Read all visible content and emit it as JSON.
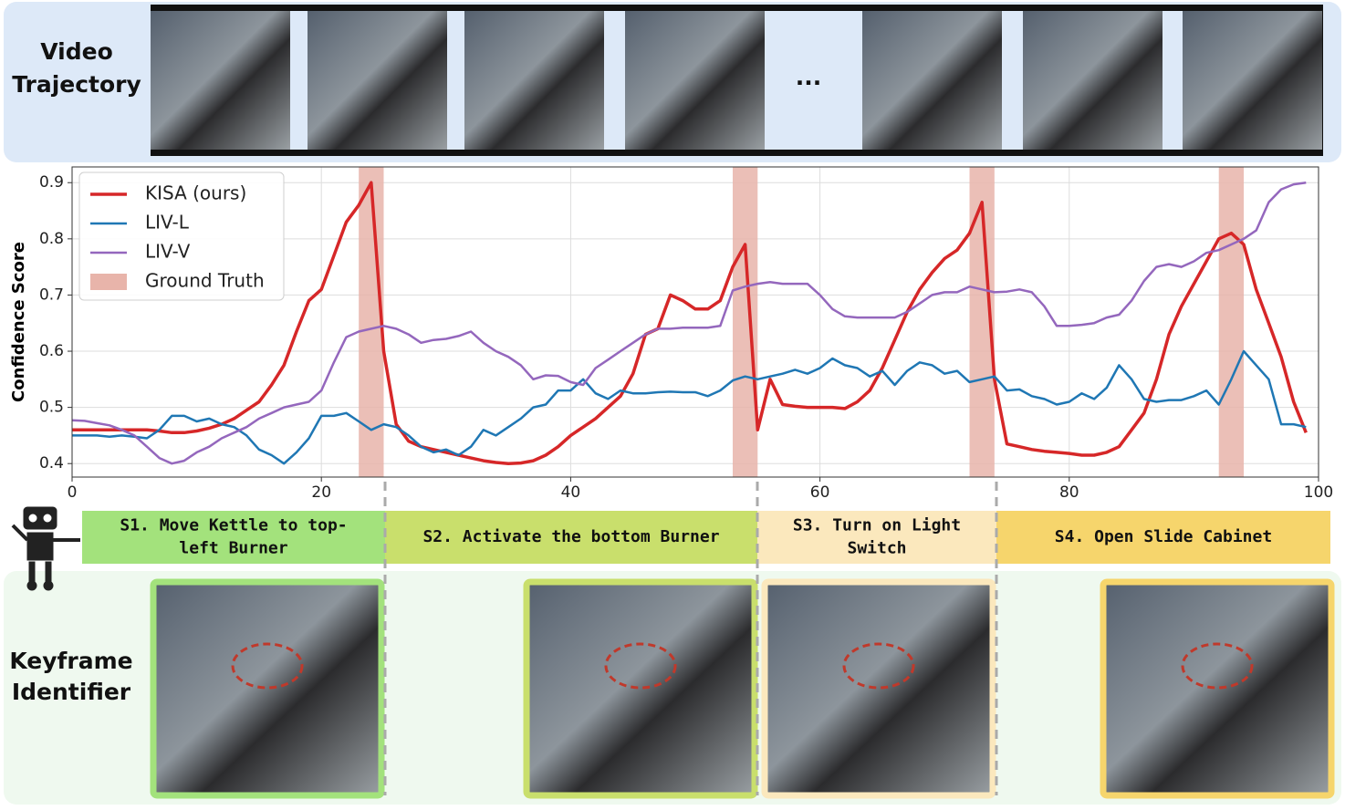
{
  "panels": {
    "video_label": [
      "Video",
      "Trajectory"
    ],
    "ellipsis": "...",
    "keyframe_label": [
      "Keyframe",
      "Identifier"
    ]
  },
  "stages": [
    {
      "lines": [
        "S1. Move Kettle to top-",
        "left Burner"
      ],
      "color": "#a3e27c"
    },
    {
      "lines": [
        "S2. Activate the bottom Burner"
      ],
      "color": "#c9df6c"
    },
    {
      "lines": [
        "S3. Turn on Light",
        "Switch"
      ],
      "color": "#fbe8bd"
    },
    {
      "lines": [
        "S4. Open Slide Cabinet"
      ],
      "color": "#f6d56c"
    }
  ],
  "chart_data": {
    "type": "line",
    "y_label": "Confidence Score",
    "xlim": [
      0,
      100
    ],
    "ylim": [
      0.376,
      0.928
    ],
    "xticks": [
      0,
      20,
      40,
      60,
      80,
      100
    ],
    "yticks": [
      0.4,
      0.5,
      0.6,
      0.7,
      0.8,
      0.9
    ],
    "grid": true,
    "legend": "upper left",
    "x": [
      0,
      1,
      2,
      3,
      4,
      5,
      6,
      7,
      8,
      9,
      10,
      11,
      12,
      13,
      14,
      15,
      16,
      17,
      18,
      19,
      20,
      21,
      22,
      23,
      24,
      25,
      26,
      27,
      28,
      29,
      30,
      31,
      32,
      33,
      34,
      35,
      36,
      37,
      38,
      39,
      40,
      41,
      42,
      43,
      44,
      45,
      46,
      47,
      48,
      49,
      50,
      51,
      52,
      53,
      54,
      55,
      56,
      57,
      58,
      59,
      60,
      61,
      62,
      63,
      64,
      65,
      66,
      67,
      68,
      69,
      70,
      71,
      72,
      73,
      74,
      75,
      76,
      77,
      78,
      79,
      80,
      81,
      82,
      83,
      84,
      85,
      86,
      87,
      88,
      89,
      90,
      91,
      92,
      93,
      94,
      95,
      96,
      97,
      98,
      99
    ],
    "series": [
      {
        "name": "KISA (ours)",
        "color": "#d62728",
        "width": 3.5,
        "values": [
          0.46,
          0.46,
          0.46,
          0.46,
          0.46,
          0.46,
          0.46,
          0.458,
          0.455,
          0.455,
          0.458,
          0.463,
          0.47,
          0.48,
          0.495,
          0.51,
          0.54,
          0.575,
          0.635,
          0.69,
          0.71,
          0.77,
          0.83,
          0.86,
          0.9,
          0.6,
          0.47,
          0.44,
          0.43,
          0.425,
          0.42,
          0.415,
          0.41,
          0.405,
          0.402,
          0.4,
          0.401,
          0.405,
          0.415,
          0.43,
          0.45,
          0.465,
          0.48,
          0.5,
          0.52,
          0.56,
          0.63,
          0.64,
          0.7,
          0.69,
          0.675,
          0.675,
          0.69,
          0.75,
          0.79,
          0.46,
          0.55,
          0.505,
          0.502,
          0.5,
          0.5,
          0.5,
          0.498,
          0.51,
          0.53,
          0.57,
          0.62,
          0.67,
          0.71,
          0.74,
          0.765,
          0.78,
          0.81,
          0.865,
          0.55,
          0.435,
          0.43,
          0.425,
          0.422,
          0.42,
          0.418,
          0.415,
          0.415,
          0.42,
          0.43,
          0.46,
          0.49,
          0.55,
          0.63,
          0.68,
          0.72,
          0.76,
          0.8,
          0.81,
          0.79,
          0.71,
          0.65,
          0.59,
          0.51,
          0.455
        ]
      },
      {
        "name": "LIV-L",
        "color": "#1f77b4",
        "width": 2.5,
        "values": [
          0.45,
          0.45,
          0.45,
          0.448,
          0.45,
          0.448,
          0.445,
          0.46,
          0.485,
          0.485,
          0.475,
          0.48,
          0.47,
          0.465,
          0.45,
          0.425,
          0.415,
          0.4,
          0.42,
          0.445,
          0.485,
          0.485,
          0.49,
          0.475,
          0.46,
          0.47,
          0.465,
          0.45,
          0.43,
          0.42,
          0.425,
          0.415,
          0.43,
          0.46,
          0.45,
          0.465,
          0.48,
          0.5,
          0.505,
          0.53,
          0.53,
          0.55,
          0.525,
          0.515,
          0.53,
          0.525,
          0.525,
          0.527,
          0.528,
          0.527,
          0.527,
          0.52,
          0.53,
          0.548,
          0.555,
          0.55,
          0.555,
          0.56,
          0.567,
          0.56,
          0.57,
          0.587,
          0.575,
          0.57,
          0.555,
          0.565,
          0.54,
          0.565,
          0.58,
          0.575,
          0.56,
          0.565,
          0.545,
          0.55,
          0.555,
          0.53,
          0.532,
          0.52,
          0.515,
          0.505,
          0.51,
          0.525,
          0.515,
          0.535,
          0.575,
          0.55,
          0.515,
          0.51,
          0.513,
          0.513,
          0.52,
          0.53,
          0.505,
          0.55,
          0.6,
          0.575,
          0.55,
          0.47,
          0.47,
          0.465
        ]
      },
      {
        "name": "LIV-V",
        "color": "#9467bd",
        "width": 2.5,
        "values": [
          0.477,
          0.476,
          0.472,
          0.468,
          0.46,
          0.45,
          0.43,
          0.41,
          0.4,
          0.405,
          0.42,
          0.43,
          0.445,
          0.455,
          0.465,
          0.48,
          0.49,
          0.5,
          0.505,
          0.51,
          0.53,
          0.58,
          0.625,
          0.635,
          0.64,
          0.645,
          0.64,
          0.63,
          0.615,
          0.62,
          0.622,
          0.627,
          0.635,
          0.615,
          0.6,
          0.59,
          0.575,
          0.55,
          0.557,
          0.556,
          0.545,
          0.54,
          0.57,
          0.585,
          0.6,
          0.615,
          0.63,
          0.64,
          0.64,
          0.642,
          0.642,
          0.642,
          0.645,
          0.708,
          0.715,
          0.72,
          0.723,
          0.72,
          0.72,
          0.72,
          0.7,
          0.675,
          0.662,
          0.66,
          0.66,
          0.66,
          0.66,
          0.67,
          0.685,
          0.7,
          0.705,
          0.705,
          0.715,
          0.71,
          0.705,
          0.706,
          0.71,
          0.705,
          0.68,
          0.645,
          0.645,
          0.647,
          0.65,
          0.66,
          0.665,
          0.69,
          0.725,
          0.75,
          0.755,
          0.75,
          0.76,
          0.775,
          0.78,
          0.79,
          0.8,
          0.815,
          0.865,
          0.888,
          0.897,
          0.9
        ]
      }
    ],
    "ground_truth": {
      "name": "Ground Truth",
      "color": "#e8b4aa",
      "spans": [
        [
          23,
          25
        ],
        [
          53,
          55
        ],
        [
          72,
          74
        ],
        [
          92,
          94
        ]
      ]
    }
  }
}
